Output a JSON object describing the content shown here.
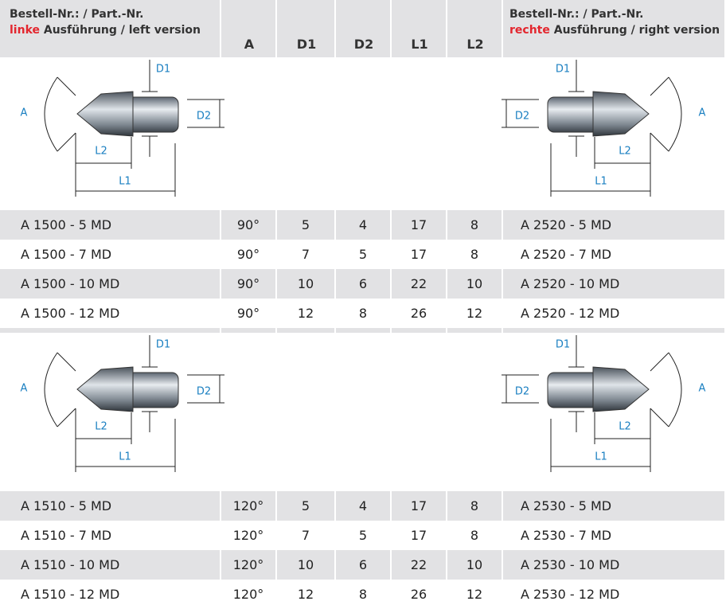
{
  "header": {
    "left_line1": "Bestell-Nr.: / Part.-Nr.",
    "left_highlight": "linke",
    "left_line2": "Ausführung / left version",
    "columns": [
      "A",
      "D1",
      "D2",
      "L1",
      "L2"
    ],
    "right_line1": "Bestell-Nr.: / Part.-Nr.",
    "right_highlight": "rechte",
    "right_line2": "Ausführung / right version"
  },
  "sections": [
    {
      "left_diagram": {
        "A": "A",
        "D1": "D1",
        "D2": "D2",
        "L1": "L1",
        "L2": "L2"
      },
      "right_diagram": {
        "A": "A",
        "D1": "D1",
        "D2": "D2",
        "L1": "L1",
        "L2": "L2"
      },
      "rows": [
        [
          "A 1500 - 5 MD",
          "90°",
          5,
          4,
          17,
          8,
          "A 2520 - 5 MD"
        ],
        [
          "A 1500 - 7 MD",
          "90°",
          7,
          5,
          17,
          8,
          "A 2520 - 7 MD"
        ],
        [
          "A 1500 - 10 MD",
          "90°",
          10,
          6,
          22,
          10,
          "A 2520 - 10 MD"
        ],
        [
          "A 1500 - 12 MD",
          "90°",
          12,
          8,
          26,
          12,
          "A 2520 - 12 MD"
        ]
      ]
    },
    {
      "left_diagram": {
        "A": "A",
        "D1": "D1",
        "D2": "D2",
        "L1": "L1",
        "L2": "L2"
      },
      "right_diagram": {
        "A": "A",
        "D1": "D1",
        "D2": "D2",
        "L1": "L1",
        "L2": "L2"
      },
      "rows": [
        [
          "A 1510 - 5 MD",
          "120°",
          5,
          4,
          17,
          8,
          "A 2530 - 5 MD"
        ],
        [
          "A 1510 - 7 MD",
          "120°",
          7,
          5,
          17,
          8,
          "A 2530 - 7 MD"
        ],
        [
          "A 1510 - 10 MD",
          "120°",
          10,
          6,
          22,
          10,
          "A 2530 - 10 MD"
        ],
        [
          "A 1510 - 12 MD",
          "120°",
          12,
          8,
          26,
          12,
          "A 2530 - 12 MD"
        ]
      ]
    }
  ]
}
